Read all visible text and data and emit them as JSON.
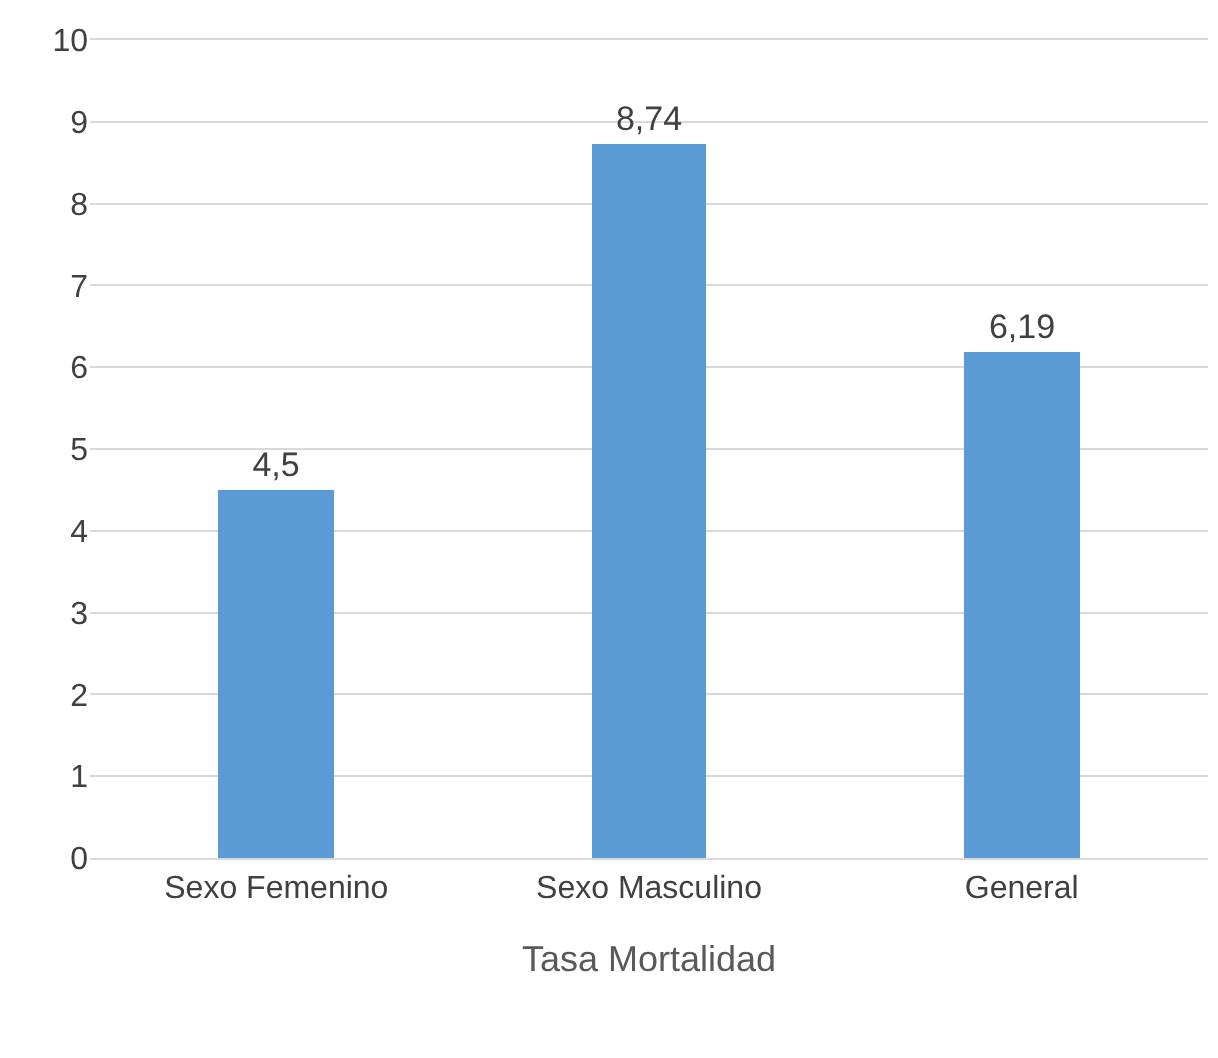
{
  "chart_data": {
    "type": "bar",
    "xlabel": "Tasa Mortalidad",
    "categories": [
      "Sexo Femenino",
      "Sexo Masculino",
      "General"
    ],
    "values": [
      4.5,
      8.74,
      6.19
    ],
    "value_labels": [
      "4,5",
      "8,74",
      "6,19"
    ],
    "color": "#5b9bd5",
    "ylim": [
      0,
      10
    ],
    "yticks": [
      0,
      1,
      2,
      3,
      4,
      5,
      6,
      7,
      8,
      9,
      10
    ],
    "grid": "y"
  }
}
